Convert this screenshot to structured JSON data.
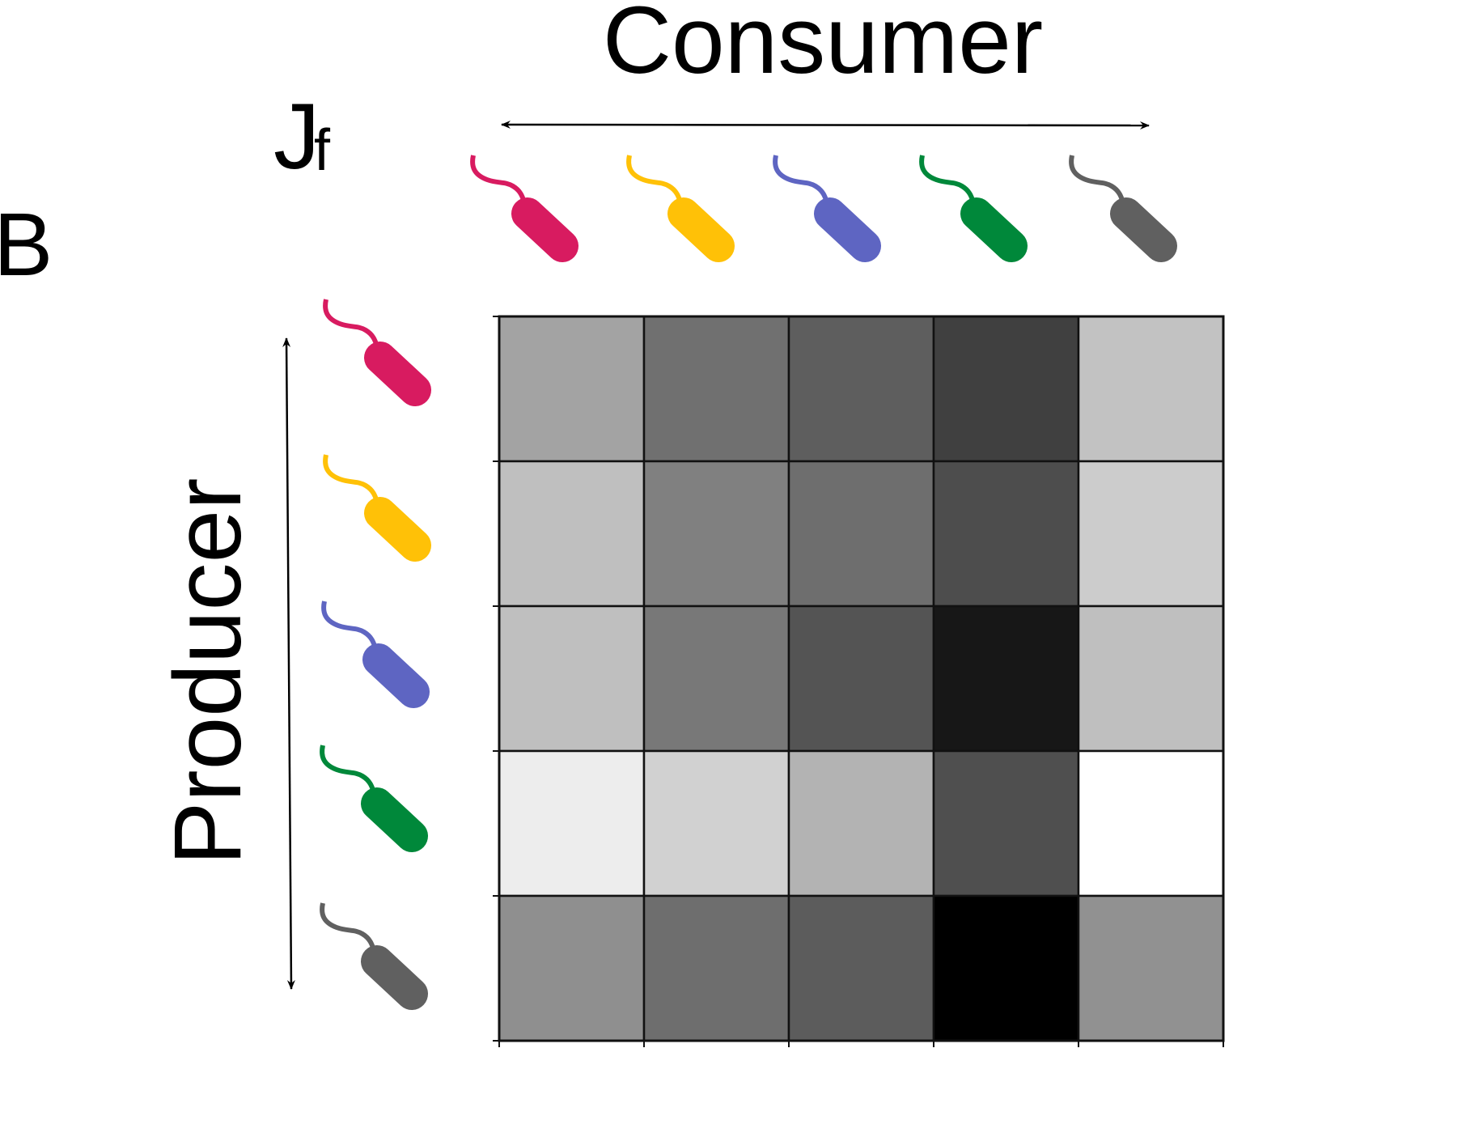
{
  "panel_label": "B",
  "chart_data": {
    "type": "heatmap",
    "title": "",
    "matrix_label": "J",
    "matrix_label_subscript": "f",
    "xlabel": "Consumer",
    "ylabel": "Producer",
    "colormap": "gray_reversed",
    "value_range": [
      0,
      1
    ],
    "n_rows": 5,
    "n_cols": 5,
    "consumers": [
      {
        "color": "#d81b60"
      },
      {
        "color": "#ffc107"
      },
      {
        "color": "#5e65c2"
      },
      {
        "color": "#00883a"
      },
      {
        "color": "#606060"
      }
    ],
    "producers": [
      {
        "color": "#d81b60"
      },
      {
        "color": "#ffc107"
      },
      {
        "color": "#5e65c2"
      },
      {
        "color": "#00883a"
      },
      {
        "color": "#606060"
      }
    ],
    "values": [
      [
        0.36,
        0.56,
        0.63,
        0.75,
        0.24
      ],
      [
        0.25,
        0.5,
        0.57,
        0.7,
        0.2
      ],
      [
        0.25,
        0.53,
        0.67,
        0.91,
        0.25
      ],
      [
        0.07,
        0.18,
        0.3,
        0.69,
        0.0
      ],
      [
        0.44,
        0.57,
        0.64,
        1.0,
        0.43
      ]
    ]
  }
}
